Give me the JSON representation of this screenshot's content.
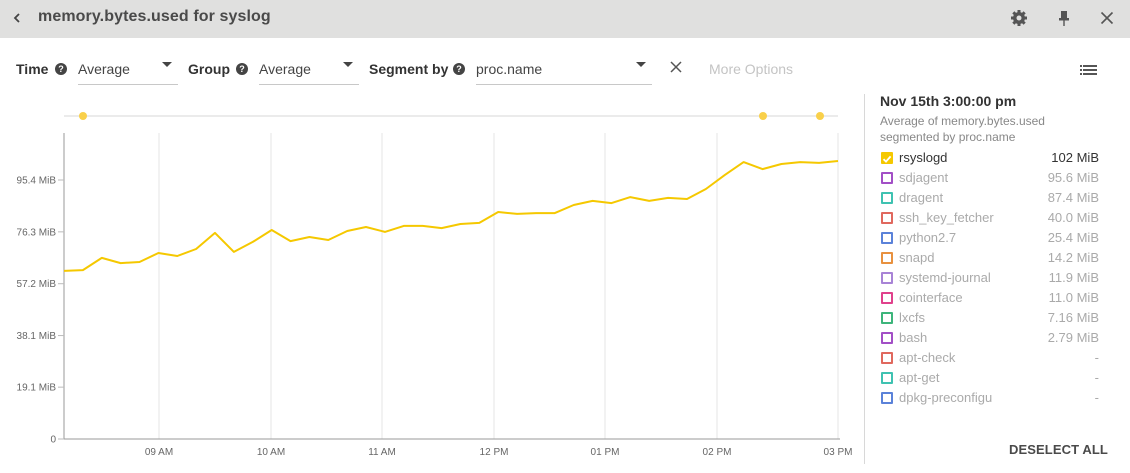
{
  "header": {
    "title": "memory.bytes.used for syslog",
    "back_icon": "chevron-left-icon",
    "actions": [
      {
        "name": "settings",
        "icon": "gear-icon"
      },
      {
        "name": "pin",
        "icon": "pin-icon"
      },
      {
        "name": "close",
        "icon": "close-icon"
      }
    ]
  },
  "controls": {
    "time_label": "Time",
    "time_value": "Average",
    "group_label": "Group",
    "group_value": "Average",
    "segment_label": "Segment by",
    "segment_value": "proc.name",
    "help_glyph": "?",
    "more_options": "More Options"
  },
  "legend": {
    "timestamp": "Nov 15th 3:00:00 pm",
    "description_line1": "Average of memory.bytes.used",
    "description_line2": "segmented by proc.name",
    "items": [
      {
        "name": "rsyslogd",
        "value": "102 MiB",
        "color": "#f5c800",
        "checked": true
      },
      {
        "name": "sdjagent",
        "value": "95.6 MiB",
        "color": "#a24fc6",
        "checked": false
      },
      {
        "name": "dragent",
        "value": "87.4 MiB",
        "color": "#3fc2b1",
        "checked": false
      },
      {
        "name": "ssh_key_fetcher",
        "value": "40.0 MiB",
        "color": "#e0685e",
        "checked": false
      },
      {
        "name": "python2.7",
        "value": "25.4 MiB",
        "color": "#5b82d9",
        "checked": false
      },
      {
        "name": "snapd",
        "value": "14.2 MiB",
        "color": "#e8913f",
        "checked": false
      },
      {
        "name": "systemd-journal",
        "value": "11.9 MiB",
        "color": "#a883d6",
        "checked": false
      },
      {
        "name": "cointerface",
        "value": "11.0 MiB",
        "color": "#e0418c",
        "checked": false
      },
      {
        "name": "lxcfs",
        "value": "7.16 MiB",
        "color": "#3db57b",
        "checked": false
      },
      {
        "name": "bash",
        "value": "2.79 MiB",
        "color": "#a24fc6",
        "checked": false
      },
      {
        "name": "apt-check",
        "value": "-",
        "color": "#e0685e",
        "checked": false
      },
      {
        "name": "apt-get",
        "value": "-",
        "color": "#3fc2b1",
        "checked": false
      },
      {
        "name": "dpkg-preconfigu",
        "value": "-",
        "color": "#5b82d9",
        "checked": false
      }
    ],
    "deselect_all": "DESELECT ALL"
  },
  "chart_data": {
    "type": "line",
    "title": "memory.bytes.used for syslog",
    "xlabel": "",
    "ylabel": "",
    "x_tick_labels": [
      "09 AM",
      "10 AM",
      "11 AM",
      "12 PM",
      "01 PM",
      "02 PM",
      "03 PM"
    ],
    "y_tick_labels": [
      "0",
      "19.1 MiB",
      "38.1 MiB",
      "57.2 MiB",
      "76.3 MiB",
      "95.4 MiB"
    ],
    "y_ticks": [
      0,
      19.1,
      38.1,
      57.2,
      76.3,
      95.4
    ],
    "ylim": [
      0,
      111
    ],
    "grid": {
      "vertical": true,
      "horizontal": false
    },
    "legend_position": "right",
    "annotation_markers_x": [
      "~08:20 AM",
      "~02:35 PM",
      "~02:55 PM"
    ],
    "x": [
      "08:15",
      "08:25",
      "08:35",
      "08:45",
      "08:55",
      "09:05",
      "09:15",
      "09:25",
      "09:35",
      "09:45",
      "09:55",
      "10:05",
      "10:15",
      "10:25",
      "10:35",
      "10:45",
      "10:55",
      "11:05",
      "11:15",
      "11:25",
      "11:35",
      "11:45",
      "11:55",
      "12:05",
      "12:15",
      "12:25",
      "12:35",
      "12:45",
      "12:55",
      "13:05",
      "13:15",
      "13:25",
      "13:35",
      "13:45",
      "13:55",
      "14:05",
      "14:15",
      "14:25",
      "14:35",
      "14:45",
      "14:55",
      "15:00"
    ],
    "series": [
      {
        "name": "rsyslogd",
        "color": "#f5c800",
        "values": [
          61.9,
          62.2,
          66.7,
          64.8,
          65.2,
          68.5,
          67.4,
          70.0,
          75.9,
          68.9,
          72.6,
          77.0,
          72.9,
          74.4,
          73.3,
          76.6,
          78.1,
          76.3,
          78.5,
          78.5,
          77.7,
          79.2,
          79.6,
          83.6,
          82.9,
          83.2,
          83.2,
          86.2,
          87.7,
          86.9,
          89.1,
          87.7,
          88.8,
          88.4,
          92.1,
          97.2,
          102.0,
          99.4,
          101.3,
          102.0,
          101.7,
          102.4
        ]
      }
    ]
  }
}
